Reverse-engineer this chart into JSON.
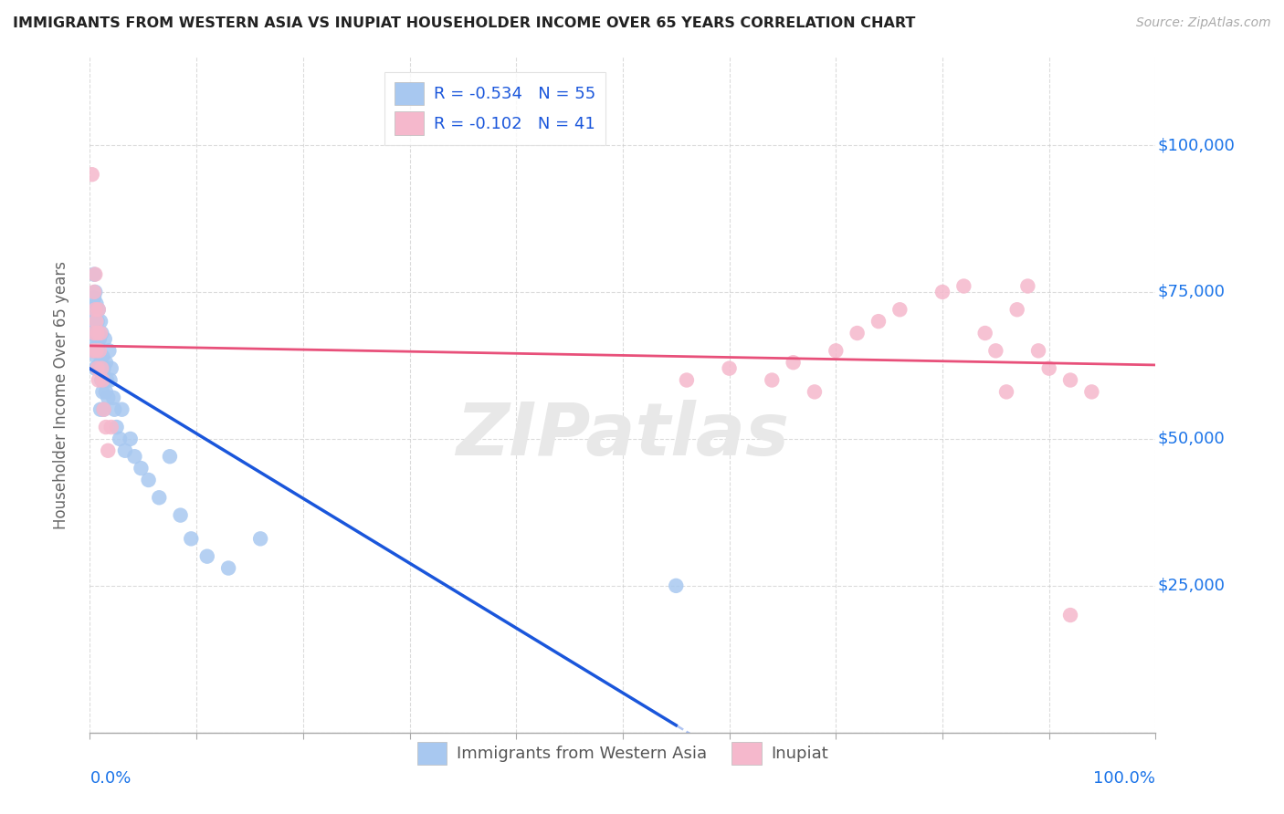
{
  "title": "IMMIGRANTS FROM WESTERN ASIA VS INUPIAT HOUSEHOLDER INCOME OVER 65 YEARS CORRELATION CHART",
  "source": "Source: ZipAtlas.com",
  "ylabel": "Householder Income Over 65 years",
  "xlim": [
    0.0,
    1.0
  ],
  "ylim": [
    0,
    115000
  ],
  "yticks": [
    0,
    25000,
    50000,
    75000,
    100000
  ],
  "ytick_labels": [
    "",
    "$25,000",
    "$50,000",
    "$75,000",
    "$100,000"
  ],
  "legend_blue_r": "-0.534",
  "legend_blue_n": "55",
  "legend_pink_r": "-0.102",
  "legend_pink_n": "41",
  "blue_color": "#a8c8f0",
  "pink_color": "#f5b8cc",
  "blue_line_color": "#1a56db",
  "pink_line_color": "#e8507a",
  "grid_color": "#cccccc",
  "title_color": "#222222",
  "axis_label_color": "#1a73e8",
  "ylabel_color": "#666666",
  "watermark": "ZIPatlas",
  "blue_x": [
    0.002,
    0.003,
    0.003,
    0.004,
    0.004,
    0.004,
    0.005,
    0.005,
    0.005,
    0.006,
    0.006,
    0.006,
    0.007,
    0.007,
    0.007,
    0.008,
    0.008,
    0.008,
    0.009,
    0.009,
    0.01,
    0.01,
    0.01,
    0.011,
    0.011,
    0.012,
    0.012,
    0.013,
    0.013,
    0.014,
    0.015,
    0.015,
    0.016,
    0.017,
    0.018,
    0.019,
    0.02,
    0.022,
    0.023,
    0.025,
    0.028,
    0.03,
    0.033,
    0.038,
    0.042,
    0.048,
    0.055,
    0.065,
    0.075,
    0.085,
    0.095,
    0.11,
    0.13,
    0.16,
    0.55
  ],
  "blue_y": [
    68000,
    72000,
    65000,
    78000,
    74000,
    70000,
    67000,
    62000,
    75000,
    68000,
    73000,
    64000,
    70000,
    66000,
    62000,
    68000,
    72000,
    65000,
    67000,
    62000,
    70000,
    63000,
    55000,
    68000,
    60000,
    64000,
    58000,
    62000,
    55000,
    67000,
    58000,
    63000,
    60000,
    57000,
    65000,
    60000,
    62000,
    57000,
    55000,
    52000,
    50000,
    55000,
    48000,
    50000,
    47000,
    45000,
    43000,
    40000,
    47000,
    37000,
    33000,
    30000,
    28000,
    33000,
    25000
  ],
  "pink_x": [
    0.002,
    0.003,
    0.004,
    0.004,
    0.005,
    0.005,
    0.006,
    0.006,
    0.007,
    0.007,
    0.008,
    0.008,
    0.009,
    0.01,
    0.011,
    0.012,
    0.013,
    0.015,
    0.017,
    0.02,
    0.56,
    0.6,
    0.64,
    0.66,
    0.68,
    0.7,
    0.72,
    0.74,
    0.76,
    0.8,
    0.82,
    0.84,
    0.85,
    0.86,
    0.87,
    0.88,
    0.89,
    0.9,
    0.92,
    0.94,
    0.92
  ],
  "pink_y": [
    95000,
    65000,
    75000,
    68000,
    72000,
    78000,
    70000,
    65000,
    62000,
    68000,
    72000,
    60000,
    65000,
    68000,
    62000,
    60000,
    55000,
    52000,
    48000,
    52000,
    60000,
    62000,
    60000,
    63000,
    58000,
    65000,
    68000,
    70000,
    72000,
    75000,
    76000,
    68000,
    65000,
    58000,
    72000,
    76000,
    65000,
    62000,
    60000,
    58000,
    20000
  ],
  "blue_line_x_start": 0.0,
  "blue_line_x_solid_end": 0.55,
  "blue_line_x_dashed_end": 0.98,
  "pink_line_x_start": 0.0,
  "pink_line_x_end": 1.0
}
